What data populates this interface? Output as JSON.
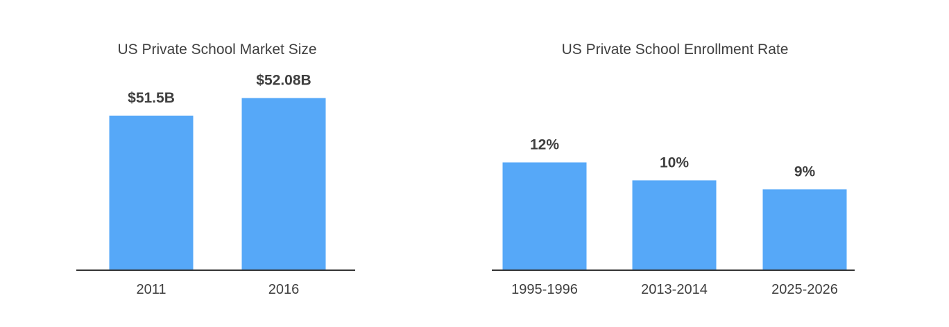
{
  "colors": {
    "bar": "#56a8f8",
    "axis": "#333333",
    "text": "#3f3f3f"
  },
  "chart_data": [
    {
      "type": "bar",
      "title": "US Private School Market Size",
      "categories": [
        "2011",
        "2016"
      ],
      "values": [
        51.5,
        52.08
      ],
      "value_labels": [
        "$51.5B",
        "$52.08B"
      ],
      "unit": "$B",
      "ylim": [
        46.4,
        52.8
      ],
      "grid": false,
      "legend": "none"
    },
    {
      "type": "bar",
      "title": "US Private School Enrollment Rate",
      "categories": [
        "1995-1996",
        "2013-2014",
        "2025-2026"
      ],
      "values": [
        12,
        10,
        9
      ],
      "value_labels": [
        "12%",
        "10%",
        "9%"
      ],
      "unit": "%",
      "ylim": [
        0,
        21.6
      ],
      "grid": false,
      "legend": "none"
    }
  ]
}
